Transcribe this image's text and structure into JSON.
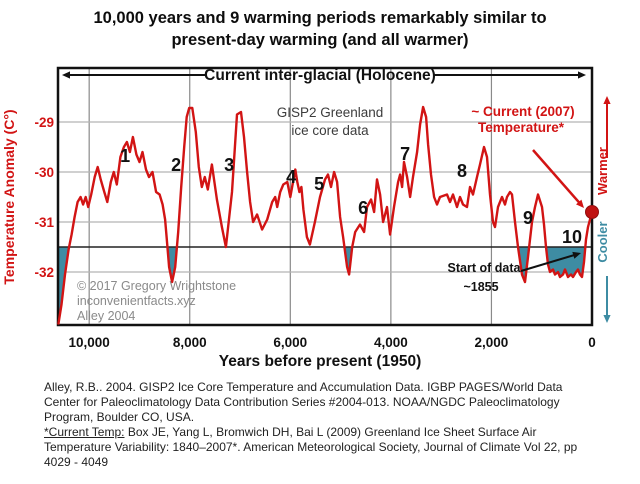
{
  "title": "10,000 years and 9 warming periods remarkably similar to\npresent-day warming (and all warmer)",
  "colors": {
    "line_red": "#d21414",
    "fill_teal": "#3e8ca3",
    "grid_vertical": "#8a8a8a",
    "grid_horizontal": "#b3b3b3",
    "axis_black": "#111111",
    "reference_line": "#222222",
    "copyright_gray": "#8a8a8a",
    "dot_red": "#bf1111"
  },
  "chart_data": {
    "type": "line",
    "title": "GISP2 Greenland ice core data",
    "xlabel": "Years before present (1950)",
    "ylabel": "Temperature Anomaly (C°)",
    "xlim": [
      10620,
      0
    ],
    "ylim": [
      -33.1,
      -27.9
    ],
    "grid": true,
    "x_ticks": [
      {
        "value": 10000,
        "label": "10,000"
      },
      {
        "value": 8000,
        "label": "8,000"
      },
      {
        "value": 6000,
        "label": "6,000"
      },
      {
        "value": 4000,
        "label": "4,000"
      },
      {
        "value": 2000,
        "label": "2,000"
      },
      {
        "value": 0,
        "label": "0"
      }
    ],
    "y_ticks": [
      {
        "value": -29,
        "label": "-29"
      },
      {
        "value": -30,
        "label": "-30"
      },
      {
        "value": -31,
        "label": "-31"
      },
      {
        "value": -32,
        "label": "-32"
      }
    ],
    "reference_line_temp": -31.5,
    "current_2007": {
      "year": 0,
      "temp": -30.8
    },
    "series": [
      {
        "name": "GISP2 temperature anomaly",
        "points": [
          [
            10615,
            -33.05
          ],
          [
            10550,
            -32.65
          ],
          [
            10480,
            -32.05
          ],
          [
            10410,
            -31.55
          ],
          [
            10350,
            -31.25
          ],
          [
            10290,
            -30.9
          ],
          [
            10230,
            -30.6
          ],
          [
            10170,
            -30.5
          ],
          [
            10120,
            -30.65
          ],
          [
            10070,
            -30.5
          ],
          [
            10020,
            -30.7
          ],
          [
            9960,
            -30.45
          ],
          [
            9890,
            -30.1
          ],
          [
            9830,
            -29.9
          ],
          [
            9770,
            -30.15
          ],
          [
            9700,
            -30.4
          ],
          [
            9640,
            -30.6
          ],
          [
            9570,
            -30.2
          ],
          [
            9510,
            -30.0
          ],
          [
            9450,
            -30.25
          ],
          [
            9380,
            -29.7
          ],
          [
            9310,
            -29.5
          ],
          [
            9250,
            -29.4
          ],
          [
            9190,
            -29.6
          ],
          [
            9130,
            -29.3
          ],
          [
            9060,
            -29.65
          ],
          [
            9000,
            -29.8
          ],
          [
            8940,
            -29.6
          ],
          [
            8870,
            -29.95
          ],
          [
            8810,
            -30.1
          ],
          [
            8740,
            -30.0
          ],
          [
            8670,
            -30.4
          ],
          [
            8600,
            -30.45
          ],
          [
            8540,
            -30.65
          ],
          [
            8490,
            -30.95
          ],
          [
            8460,
            -31.3
          ],
          [
            8410,
            -31.9
          ],
          [
            8350,
            -32.2
          ],
          [
            8290,
            -31.9
          ],
          [
            8230,
            -31.2
          ],
          [
            8170,
            -30.3
          ],
          [
            8110,
            -29.5
          ],
          [
            8060,
            -28.9
          ],
          [
            8010,
            -28.72
          ],
          [
            7950,
            -28.72
          ],
          [
            7880,
            -29.2
          ],
          [
            7820,
            -29.9
          ],
          [
            7760,
            -30.3
          ],
          [
            7700,
            -30.1
          ],
          [
            7640,
            -30.35
          ],
          [
            7560,
            -29.85
          ],
          [
            7460,
            -30.55
          ],
          [
            7360,
            -31.1
          ],
          [
            7280,
            -31.5
          ],
          [
            7160,
            -30.4
          ],
          [
            7060,
            -28.85
          ],
          [
            6980,
            -28.8
          ],
          [
            6920,
            -29.3
          ],
          [
            6860,
            -30.0
          ],
          [
            6800,
            -30.6
          ],
          [
            6740,
            -31.0
          ],
          [
            6660,
            -30.85
          ],
          [
            6560,
            -31.15
          ],
          [
            6460,
            -30.95
          ],
          [
            6360,
            -30.6
          ],
          [
            6300,
            -30.5
          ],
          [
            6260,
            -30.7
          ],
          [
            6200,
            -30.4
          ],
          [
            6140,
            -30.25
          ],
          [
            6060,
            -30.2
          ],
          [
            6000,
            -30.5
          ],
          [
            5900,
            -29.95
          ],
          [
            5860,
            -30.2
          ],
          [
            5820,
            -30.4
          ],
          [
            5780,
            -30.3
          ],
          [
            5740,
            -30.75
          ],
          [
            5670,
            -31.3
          ],
          [
            5610,
            -31.45
          ],
          [
            5510,
            -31.0
          ],
          [
            5410,
            -30.5
          ],
          [
            5310,
            -30.15
          ],
          [
            5250,
            -30.05
          ],
          [
            5190,
            -30.3
          ],
          [
            5130,
            -30.0
          ],
          [
            5070,
            -30.2
          ],
          [
            5010,
            -30.9
          ],
          [
            4950,
            -31.3
          ],
          [
            4870,
            -31.9
          ],
          [
            4830,
            -32.05
          ],
          [
            4770,
            -31.5
          ],
          [
            4710,
            -31.2
          ],
          [
            4613,
            -31.05
          ],
          [
            4533,
            -31.2
          ],
          [
            4474,
            -30.7
          ],
          [
            4394,
            -30.55
          ],
          [
            4334,
            -30.8
          ],
          [
            4275,
            -30.15
          ],
          [
            4215,
            -30.45
          ],
          [
            4155,
            -31.0
          ],
          [
            4076,
            -30.7
          ],
          [
            4016,
            -31.25
          ],
          [
            3937,
            -30.7
          ],
          [
            3857,
            -30.2
          ],
          [
            3817,
            -30.05
          ],
          [
            3777,
            -30.3
          ],
          [
            3738,
            -29.8
          ],
          [
            3678,
            -30.1
          ],
          [
            3618,
            -30.5
          ],
          [
            3559,
            -30.1
          ],
          [
            3479,
            -29.6
          ],
          [
            3419,
            -29.05
          ],
          [
            3360,
            -28.7
          ],
          [
            3300,
            -28.9
          ],
          [
            3260,
            -29.45
          ],
          [
            3201,
            -30.05
          ],
          [
            3141,
            -30.5
          ],
          [
            3082,
            -30.65
          ],
          [
            3022,
            -30.5
          ],
          [
            2883,
            -30.45
          ],
          [
            2824,
            -30.6
          ],
          [
            2764,
            -30.45
          ],
          [
            2684,
            -30.7
          ],
          [
            2625,
            -30.5
          ],
          [
            2565,
            -30.65
          ],
          [
            2486,
            -30.7
          ],
          [
            2426,
            -30.3
          ],
          [
            2367,
            -30.45
          ],
          [
            2287,
            -30.1
          ],
          [
            2228,
            -29.85
          ],
          [
            2148,
            -29.5
          ],
          [
            2088,
            -29.7
          ],
          [
            2029,
            -30.45
          ],
          [
            1969,
            -31.0
          ],
          [
            1929,
            -31.1
          ],
          [
            1869,
            -30.7
          ],
          [
            1790,
            -30.5
          ],
          [
            1730,
            -30.65
          ],
          [
            1690,
            -30.5
          ],
          [
            1631,
            -30.4
          ],
          [
            1591,
            -30.45
          ],
          [
            1531,
            -31.0
          ],
          [
            1471,
            -31.5
          ],
          [
            1392,
            -32.05
          ],
          [
            1332,
            -32.2
          ],
          [
            1272,
            -31.7
          ],
          [
            1193,
            -31.0
          ],
          [
            1133,
            -30.7
          ],
          [
            1073,
            -30.45
          ],
          [
            994,
            -30.7
          ],
          [
            954,
            -31.05
          ],
          [
            915,
            -31.5
          ],
          [
            875,
            -31.85
          ],
          [
            835,
            -32.0
          ],
          [
            776,
            -31.95
          ],
          [
            736,
            -32.05
          ],
          [
            676,
            -32.0
          ],
          [
            636,
            -32.1
          ],
          [
            577,
            -32.05
          ],
          [
            537,
            -31.95
          ],
          [
            477,
            -32.1
          ],
          [
            418,
            -32.05
          ],
          [
            378,
            -32.1
          ],
          [
            318,
            -32.0
          ],
          [
            278,
            -31.95
          ],
          [
            239,
            -32.05
          ],
          [
            199,
            -32.1
          ],
          [
            159,
            -31.8
          ],
          [
            119,
            -31.35
          ],
          [
            80,
            -31.1
          ],
          [
            40,
            -30.95
          ],
          [
            0,
            -30.8
          ]
        ]
      }
    ],
    "period_labels": [
      {
        "n": "1",
        "year": 9284,
        "temp": -29.68
      },
      {
        "n": "2",
        "year": 8270,
        "temp": -29.86
      },
      {
        "n": "3",
        "year": 7216,
        "temp": -29.86
      },
      {
        "n": "4",
        "year": 5984,
        "temp": -30.1
      },
      {
        "n": "5",
        "year": 5427,
        "temp": -30.24
      },
      {
        "n": "6",
        "year": 4552,
        "temp": -30.72
      },
      {
        "n": "7",
        "year": 3717,
        "temp": -29.64
      },
      {
        "n": "8",
        "year": 2584,
        "temp": -29.98
      },
      {
        "n": "9",
        "year": 1272,
        "temp": -30.92
      },
      {
        "n": "10",
        "year": 398,
        "temp": -31.3
      }
    ]
  },
  "annotations": {
    "holocene_span": "Current inter-glacial (Holocene)",
    "gisp2_line1": "GISP2 Greenland",
    "gisp2_line2": "ice core data",
    "current_temp_line1": "~ Current (2007)",
    "current_temp_line2": "Temperature*",
    "start_of_data_line1": "Start of data",
    "start_of_data_line2": "~1855",
    "warmer": "Warmer",
    "cooler": "Cooler",
    "copyright_line1": "© 2017 Gregory Wrightstone",
    "copyright_line2": "inconvenientfacts.xyz",
    "copyright_line3": "Alley 2004"
  },
  "citations": {
    "alley": "Alley, R.B.. 2004. GISP2 Ice Core Temperature and Accumulation Data. IGBP PAGES/World Data\nCenter for Paleoclimatology Data Contribution Series #2004-013. NOAA/NGDC Paleoclimatology\nProgram, Boulder CO, USA.",
    "current_temp_prefix": "*Current Temp:",
    "current_temp_rest": " Box JE, Yang L, Bromwich DH, Bai L (2009) Greenland Ice Sheet Surface Air\nTemperature Variability: 1840–2007*. American Meteorological Society, Journal of Climate Vol 22, pp\n4029 - 4049"
  }
}
